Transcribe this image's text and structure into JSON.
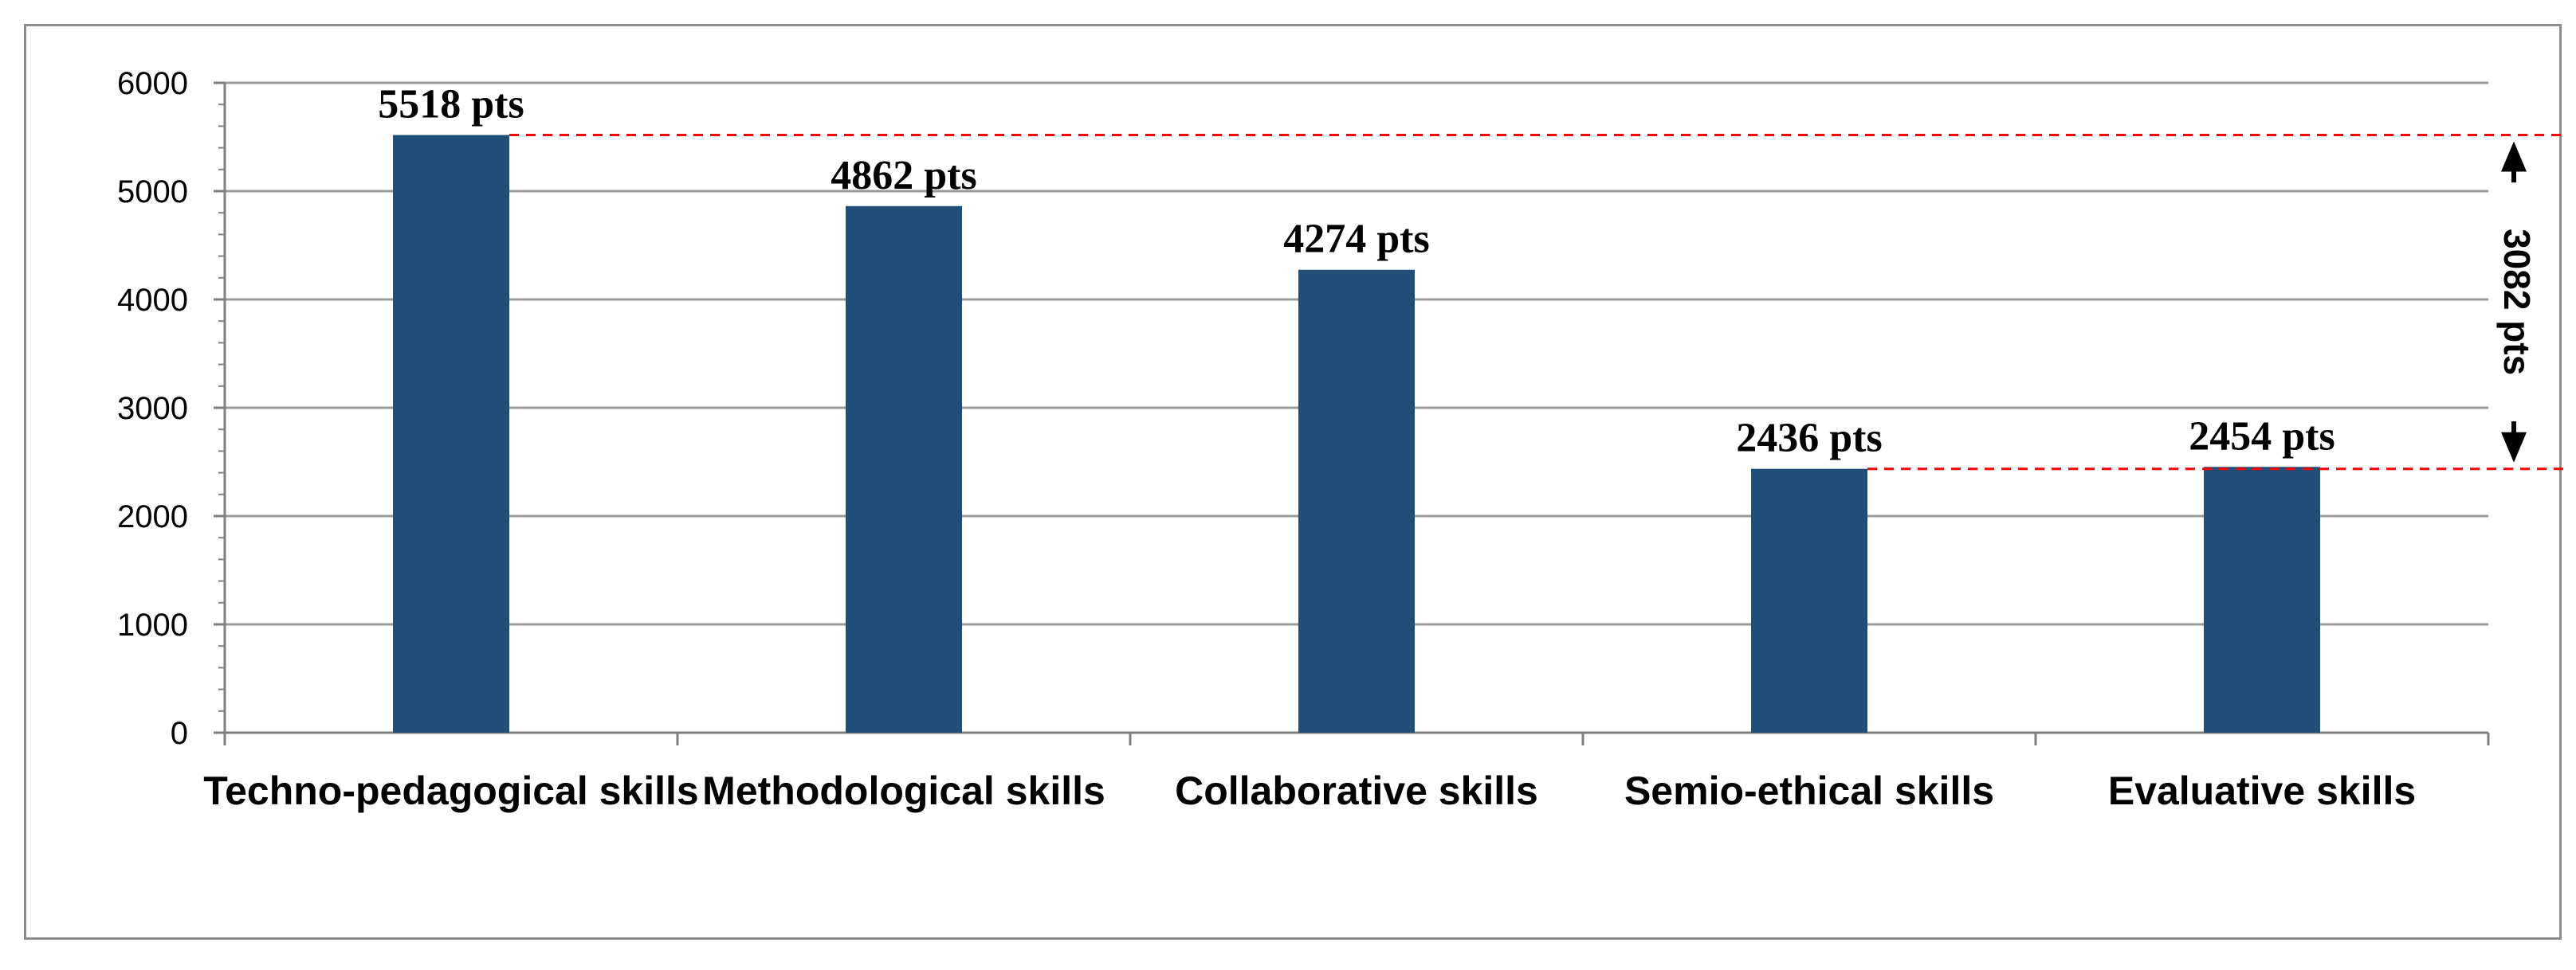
{
  "chart_data": {
    "type": "bar",
    "categories": [
      "Techno-pedagogical skills",
      "Methodological skills",
      "Collaborative skills",
      "Semio-ethical skills",
      "Evaluative skills"
    ],
    "values": [
      5518,
      4862,
      4274,
      2436,
      2454
    ],
    "data_labels": [
      "5518 pts",
      "4862 pts",
      "4274 pts",
      "2436 pts",
      "2454 pts"
    ],
    "title": "",
    "xlabel": "",
    "ylabel": "",
    "ylim": [
      0,
      6000
    ],
    "yticks": [
      "0",
      "1000",
      "2000",
      "3000",
      "4000",
      "5000",
      "6000"
    ],
    "grid": true,
    "legend": "none",
    "bar_color": "#1f4e79",
    "annotation": {
      "label": "3082 pts",
      "from_value": 5518,
      "to_value": 2436,
      "line_color": "#ff0000"
    }
  }
}
